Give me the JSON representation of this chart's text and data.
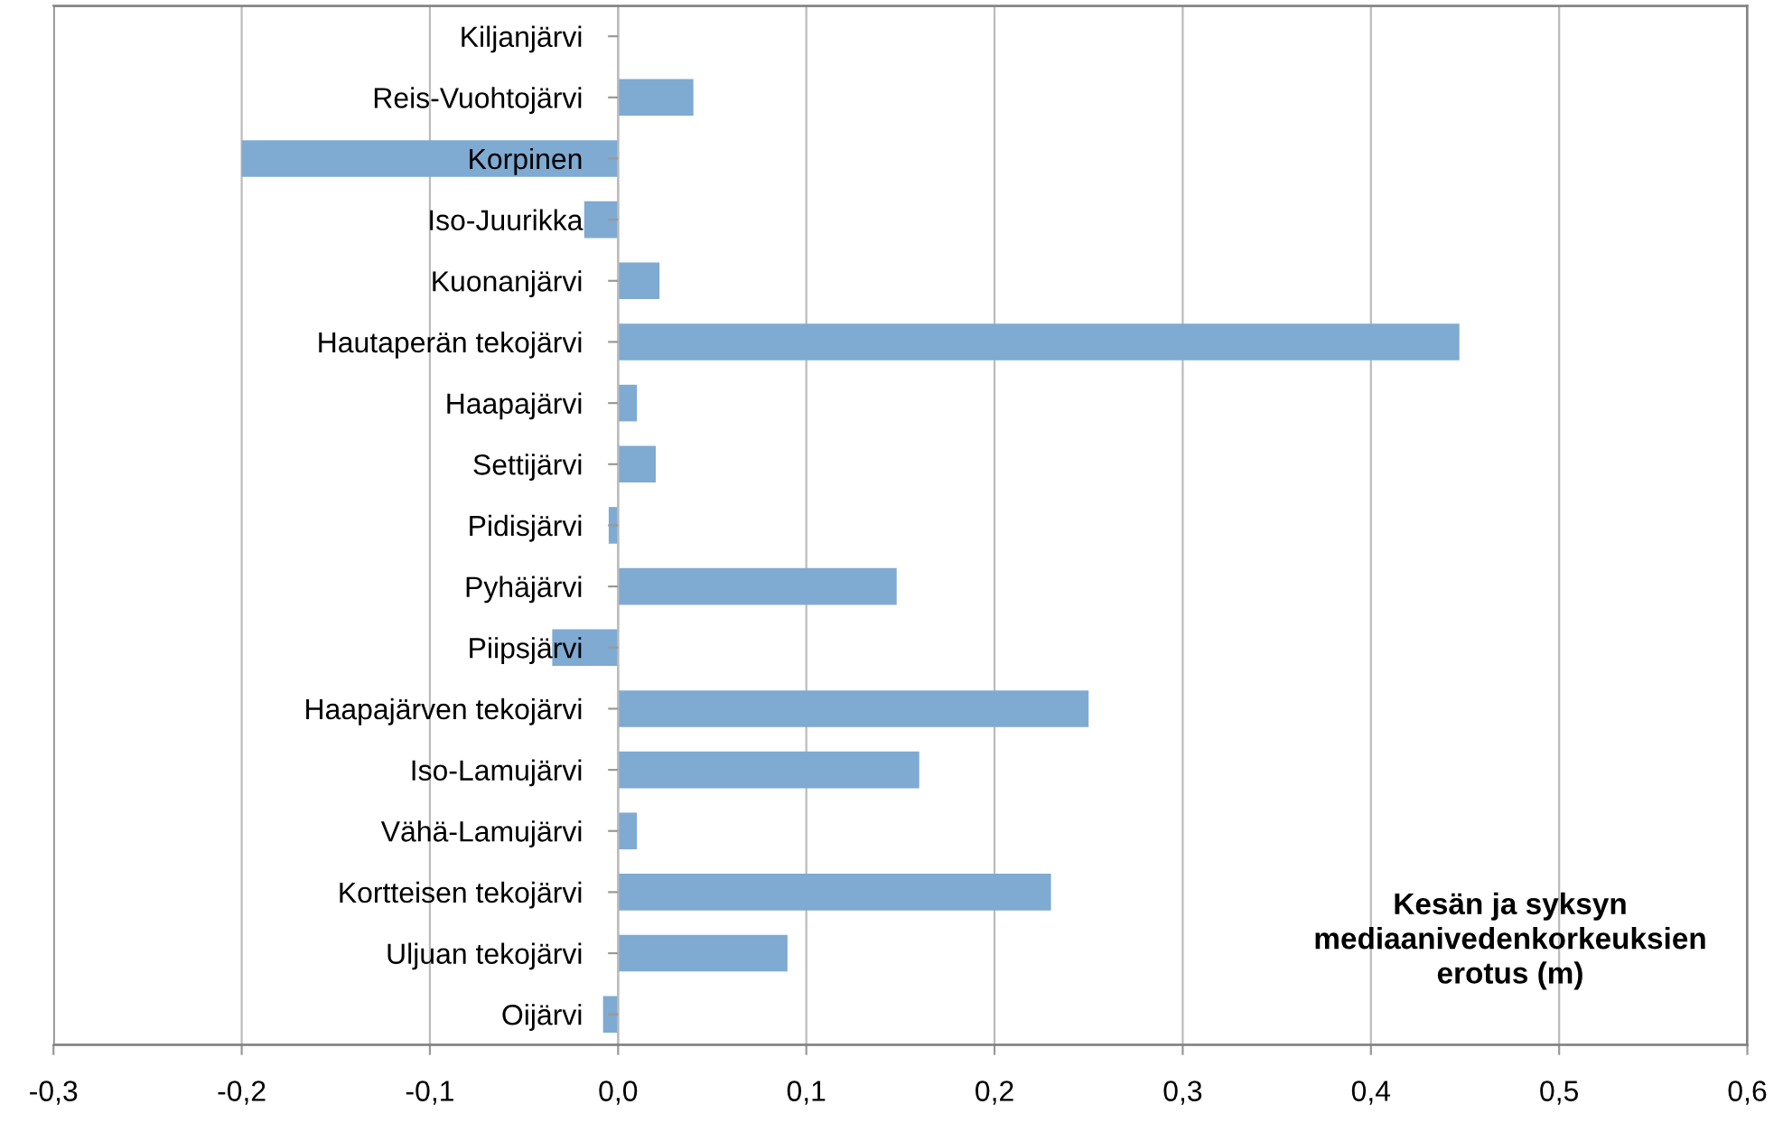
{
  "chart_data": {
    "type": "bar",
    "orientation": "horizontal",
    "categories": [
      "Kiljanjärvi",
      "Reis-Vuohtojärvi",
      "Korpinen",
      "Iso-Juurikka",
      "Kuonanjärvi",
      "Hautaperän tekojärvi",
      "Haapajärvi",
      "Settijärvi",
      "Pidisjärvi",
      "Pyhäjärvi",
      "Piipsjärvi",
      "Haapajärven tekojärvi",
      "Iso-Lamujärvi",
      "Vähä-Lamujärvi",
      "Kortteisen tekojärvi",
      "Uljuan tekojärvi",
      "Oijärvi"
    ],
    "values": [
      0,
      0.04,
      -0.2,
      -0.018,
      0.022,
      0.447,
      0.01,
      0.02,
      -0.005,
      0.148,
      -0.035,
      0.25,
      0.16,
      0.01,
      0.23,
      0.09,
      -0.008
    ],
    "color": "#7faad2",
    "xlim": [
      -0.3,
      0.6
    ],
    "xticks": [
      {
        "value": -0.3,
        "label": "-0,3"
      },
      {
        "value": -0.2,
        "label": "-0,2"
      },
      {
        "value": -0.1,
        "label": "-0,1"
      },
      {
        "value": 0,
        "label": "0,0"
      },
      {
        "value": 0.1,
        "label": "0,1"
      },
      {
        "value": 0.2,
        "label": "0,2"
      },
      {
        "value": 0.3,
        "label": "0,3"
      },
      {
        "value": 0.4,
        "label": "0,4"
      },
      {
        "value": 0.5,
        "label": "0,5"
      },
      {
        "value": 0.6,
        "label": "0,6"
      }
    ],
    "grid": "x",
    "annotations": [
      "Kesän ja syksyn\nmediaanivedenkorkeuksien\nerotus (m)"
    ]
  }
}
